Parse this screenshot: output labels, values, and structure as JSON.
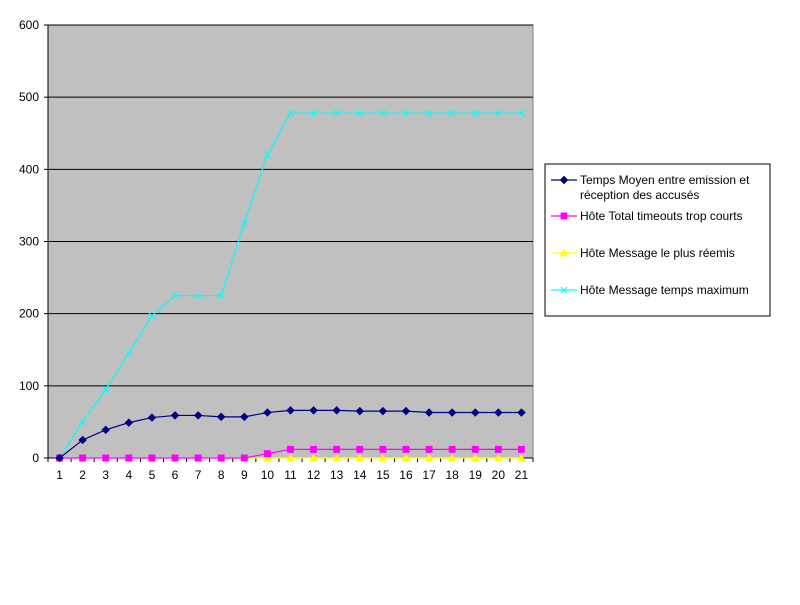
{
  "chart_data": {
    "type": "line",
    "title": "",
    "xlabel": "",
    "ylabel": "",
    "categories": [
      "1",
      "2",
      "3",
      "4",
      "5",
      "6",
      "7",
      "8",
      "9",
      "10",
      "11",
      "12",
      "13",
      "14",
      "15",
      "16",
      "17",
      "18",
      "19",
      "20",
      "21"
    ],
    "ylim": [
      0,
      600
    ],
    "yticks": [
      0,
      100,
      200,
      300,
      400,
      500,
      600
    ],
    "grid": true,
    "plot_background": "#c0c0c0",
    "legend_position": "right",
    "series": [
      {
        "name": "Temps Moyen entre emission et réception des accusés",
        "color": "#000080",
        "marker": "diamond",
        "values": [
          0,
          25,
          39,
          49,
          56,
          59,
          59,
          57,
          57,
          63,
          66,
          66,
          66,
          65,
          65,
          65,
          63,
          63,
          63,
          63,
          63
        ]
      },
      {
        "name": "Hôte Total timeouts trop courts",
        "color": "#ff00ff",
        "marker": "square",
        "values": [
          0,
          0,
          0,
          0,
          0,
          0,
          0,
          0,
          0,
          6,
          12,
          12,
          12,
          12,
          12,
          12,
          12,
          12,
          12,
          12,
          12
        ]
      },
      {
        "name": "Hôte Message le plus réemis",
        "color": "#ffff00",
        "marker": "triangle",
        "values": [
          0,
          0,
          0,
          0,
          0,
          0,
          0,
          0,
          0,
          0,
          0,
          0,
          0,
          0,
          0,
          0,
          0,
          0,
          0,
          0,
          0
        ]
      },
      {
        "name": "Hôte Message temps maximum",
        "color": "#00ffff",
        "marker": "x",
        "values": [
          0,
          50,
          95,
          145,
          197,
          225,
          225,
          225,
          325,
          420,
          478,
          478,
          478,
          478,
          478,
          478,
          478,
          478,
          478,
          478,
          478
        ]
      }
    ]
  }
}
